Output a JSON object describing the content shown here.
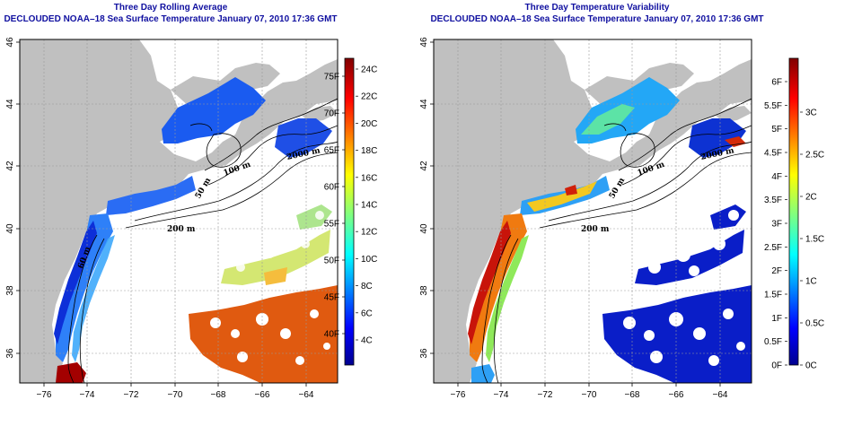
{
  "panels": [
    {
      "id": "avg",
      "title": "Three Day Rolling Average",
      "subtitle": "DECLOUDED NOAA–18 Sea Surface Temperature January 07, 2010 17:36 GMT",
      "colorbar_left_labels": [
        "40F",
        "45F",
        "50F",
        "55F",
        "60F",
        "65F",
        "70F",
        "75F"
      ],
      "colorbar_right_labels": [
        "4C",
        "6C",
        "8C",
        "10C",
        "12C",
        "14C",
        "16C",
        "18C",
        "20C",
        "22C",
        "24C"
      ],
      "contour_labels": [
        "100 m",
        "50 m",
        "200 m",
        "2000 m",
        "60 m"
      ]
    },
    {
      "id": "var",
      "title": "Three Day Temperature Variability",
      "subtitle": "DECLOUDED NOAA–18 Sea Surface Temperature January 07, 2010 17:36 GMT",
      "colorbar_left_labels": [
        "0F",
        "0.5F",
        "1F",
        "1.5F",
        "2F",
        "2.5F",
        "3F",
        "3.5F",
        "4F",
        "4.5F",
        "5F",
        "5.5F",
        "6F"
      ],
      "colorbar_right_labels": [
        "0C",
        "0.5C",
        "1C",
        "1.5C",
        "2C",
        "2.5C",
        "3C"
      ],
      "contour_labels": [
        "100 m",
        "50 m",
        "200 m",
        "2000 m"
      ]
    }
  ],
  "axes": {
    "x_ticks": [
      "−76",
      "−74",
      "−72",
      "−70",
      "−68",
      "−66",
      "−64"
    ],
    "y_ticks": [
      "36",
      "38",
      "40",
      "42",
      "44",
      "46"
    ]
  },
  "colors": {
    "land": "#c0c0c0",
    "title": "#1010a0",
    "warm": "#e05a10",
    "cold": "#1040e0"
  }
}
